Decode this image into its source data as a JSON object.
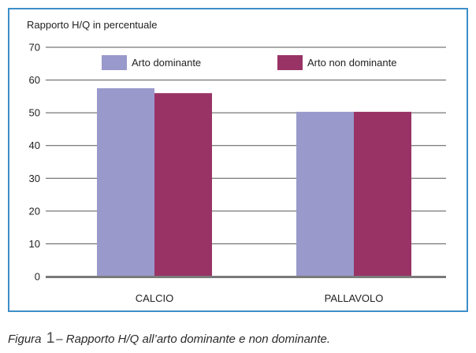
{
  "caption": {
    "prefix": "Figura",
    "number": "1",
    "text": "– Rapporto H/Q all’arto dominante e non dominante."
  },
  "chart_data": {
    "type": "bar",
    "title": "",
    "ylabel": "Rapporto H/Q in percentuale",
    "xlabel": "",
    "categories": [
      "CALCIO",
      "PALLAVOLO"
    ],
    "series": [
      {
        "name": "Arto dominante",
        "color": "#9999cc",
        "values": [
          57.5,
          50.3
        ]
      },
      {
        "name": "Arto non dominante",
        "color": "#993366",
        "values": [
          56,
          50.3
        ]
      }
    ],
    "ylim": [
      0,
      70
    ],
    "yticks": [
      0,
      10,
      20,
      30,
      40,
      50,
      60,
      70
    ],
    "grid": true,
    "legend": "top-center"
  }
}
